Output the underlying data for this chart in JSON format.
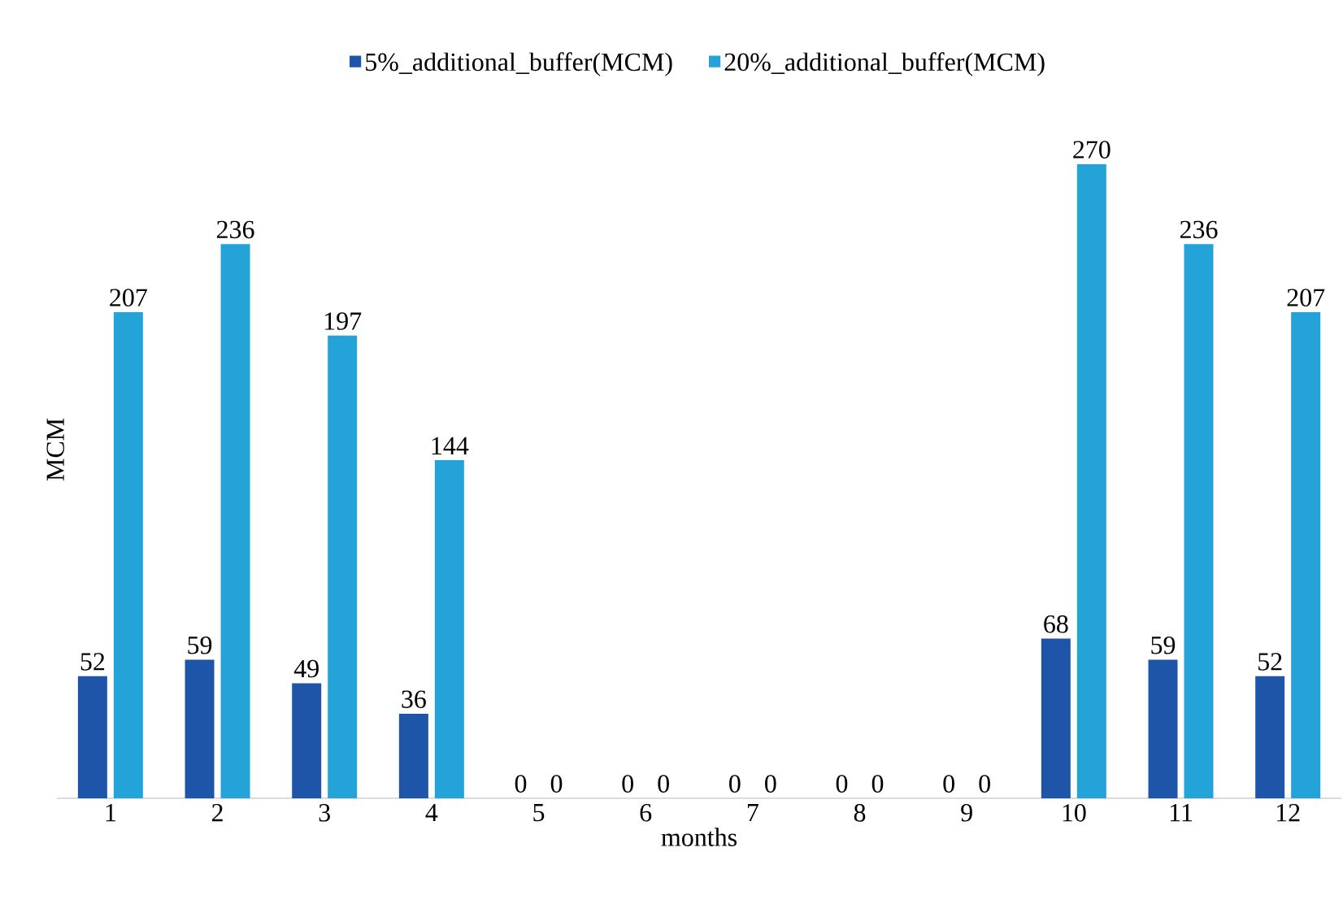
{
  "chart_data": {
    "type": "bar",
    "xlabel": "months",
    "ylabel": "MCM",
    "categories": [
      "1",
      "2",
      "3",
      "4",
      "5",
      "6",
      "7",
      "8",
      "9",
      "10",
      "11",
      "12"
    ],
    "series": [
      {
        "name": "5%_additional_buffer(MCM)",
        "color": "#1f55a8",
        "values": [
          52,
          59,
          49,
          36,
          0,
          0,
          0,
          0,
          0,
          68,
          59,
          52
        ]
      },
      {
        "name": "20%_additional_buffer(MCM)",
        "color": "#24a3d9",
        "values": [
          207,
          236,
          197,
          144,
          0,
          0,
          0,
          0,
          0,
          270,
          236,
          207
        ]
      }
    ],
    "data_labels": true,
    "legend": "top",
    "tick_labels": "x"
  }
}
